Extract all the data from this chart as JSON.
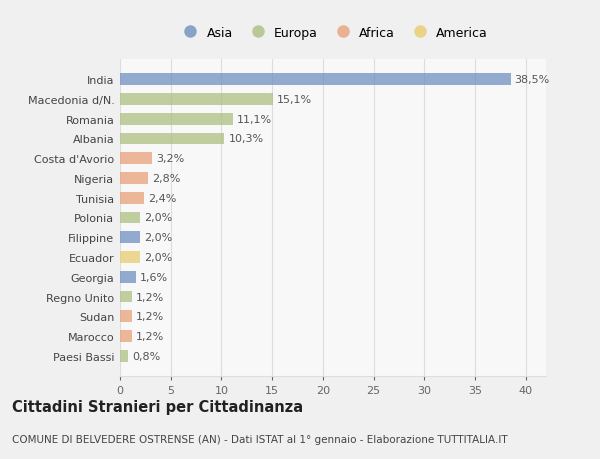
{
  "countries": [
    "India",
    "Macedonia d/N.",
    "Romania",
    "Albania",
    "Costa d'Avorio",
    "Nigeria",
    "Tunisia",
    "Polonia",
    "Filippine",
    "Ecuador",
    "Georgia",
    "Regno Unito",
    "Sudan",
    "Marocco",
    "Paesi Bassi"
  ],
  "values": [
    38.5,
    15.1,
    11.1,
    10.3,
    3.2,
    2.8,
    2.4,
    2.0,
    2.0,
    2.0,
    1.6,
    1.2,
    1.2,
    1.2,
    0.8
  ],
  "labels": [
    "38,5%",
    "15,1%",
    "11,1%",
    "10,3%",
    "3,2%",
    "2,8%",
    "2,4%",
    "2,0%",
    "2,0%",
    "2,0%",
    "1,6%",
    "1,2%",
    "1,2%",
    "1,2%",
    "0,8%"
  ],
  "continents": [
    "Asia",
    "Europa",
    "Europa",
    "Europa",
    "Africa",
    "Africa",
    "Africa",
    "Europa",
    "Asia",
    "America",
    "Asia",
    "Europa",
    "Africa",
    "Africa",
    "Europa"
  ],
  "colors": {
    "Asia": "#7090bf",
    "Europa": "#adbf82",
    "Africa": "#e8a07a",
    "America": "#e8cc70"
  },
  "legend_order": [
    "Asia",
    "Europa",
    "Africa",
    "America"
  ],
  "title": "Cittadini Stranieri per Cittadinanza",
  "subtitle": "COMUNE DI BELVEDERE OSTRENSE (AN) - Dati ISTAT al 1° gennaio - Elaborazione TUTTITALIA.IT",
  "xlim": [
    0,
    42
  ],
  "xticks": [
    0,
    5,
    10,
    15,
    20,
    25,
    30,
    35,
    40
  ],
  "background_color": "#f0f0f0",
  "plot_background": "#f8f8f8",
  "grid_color": "#dddddd",
  "label_fontsize": 8,
  "tick_fontsize": 8,
  "title_fontsize": 10.5,
  "subtitle_fontsize": 7.5,
  "bar_height": 0.6
}
